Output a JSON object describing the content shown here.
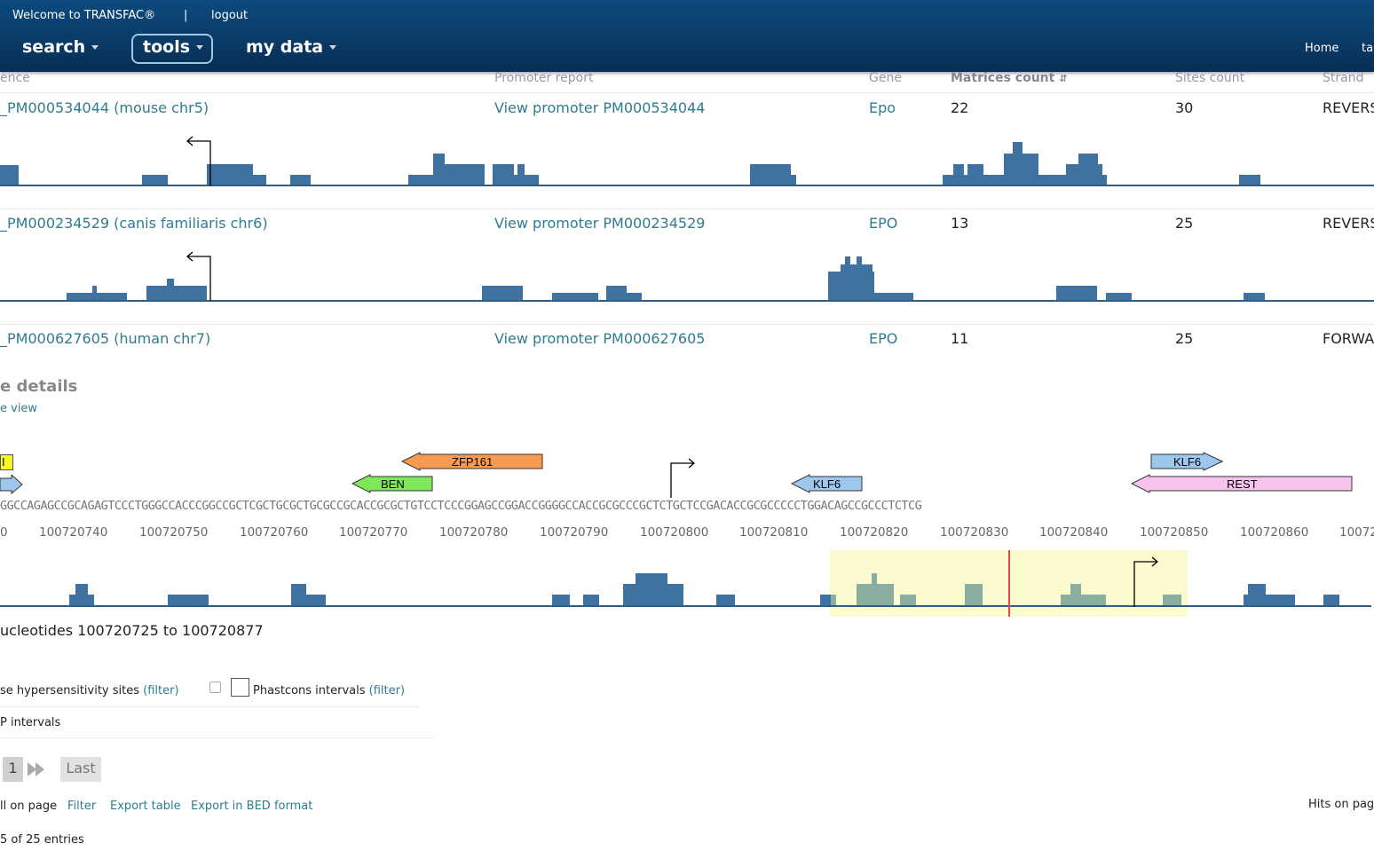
{
  "header": {
    "welcome": "Welcome to TRANSFAC®",
    "separator": "|",
    "logout": "logout",
    "nav": {
      "search": "search",
      "tools": "tools",
      "my_data": "my data"
    },
    "home": "Home",
    "cut_link": "ta"
  },
  "table": {
    "columns": {
      "sequence": "ence",
      "promoter_report": "Promoter report",
      "gene": "Gene",
      "matrices_count": "Matrices count",
      "sites_count": "Sites count",
      "strand": "Strand"
    },
    "rows": [
      {
        "sequence": "_PM000534044 (mouse chr5)",
        "promoter": "View promoter PM000534044",
        "gene": "Epo",
        "matrices": "22",
        "sites": "30",
        "strand": "REVERS"
      },
      {
        "sequence": "_PM000234529 (canis familiaris chr6)",
        "promoter": "View promoter PM000234529",
        "gene": "EPO",
        "matrices": "13",
        "sites": "25",
        "strand": "REVERS"
      },
      {
        "sequence": "_PM000627605 (human chr7)",
        "promoter": "View promoter PM000627605",
        "gene": "EPO",
        "matrices": "11",
        "sites": "25",
        "strand": "FORWA"
      }
    ]
  },
  "details": {
    "title": "e details",
    "view_link": "e view",
    "sites": {
      "cut_site": "I",
      "zfp161": "ZFP161",
      "ben": "BEN",
      "klf6_a": "KLF6",
      "klf6_b": "KLF6",
      "rest": "REST"
    },
    "sequence": "GGCCAGAGCCGCAGAGTCCCTGGGCCACCCGGCCGCTCGCTGCGCTGCGCCGCACCGCGCTGTCCTCCCGGAGCCGGACCGGGGCCACCGCGCCCGCTCTGCTCCGACACCGCGCCCCCTGGACAGCCGCCCTCTCG",
    "coords": [
      "0",
      "100720740",
      "100720750",
      "100720760",
      "100720770",
      "100720780",
      "100720790",
      "100720800",
      "100720810",
      "100720820",
      "100720830",
      "100720840",
      "100720850",
      "100720860",
      "10072"
    ],
    "range_text": "ucleotides 100720725 to 100720877"
  },
  "tracks": {
    "dnase_label": "se hypersensitivity sites",
    "dnase_filter": "(filter)",
    "phastcons_label": "Phastcons intervals",
    "phastcons_filter": "(filter)",
    "chip_label": "P intervals"
  },
  "pager": {
    "current": "1",
    "last": "Last"
  },
  "actions": {
    "all_on_page": "ll on page",
    "filter": "Filter",
    "export_table": "Export table",
    "export_bed": "Export in BED format",
    "hits_on_page": "Hits on pag"
  },
  "entries_text": "5 of 25 entries",
  "colors": {
    "header": "#0a3c69",
    "bars": "#3f72a1",
    "link": "#2f7b8f",
    "highlight": "#fbfbcf"
  }
}
